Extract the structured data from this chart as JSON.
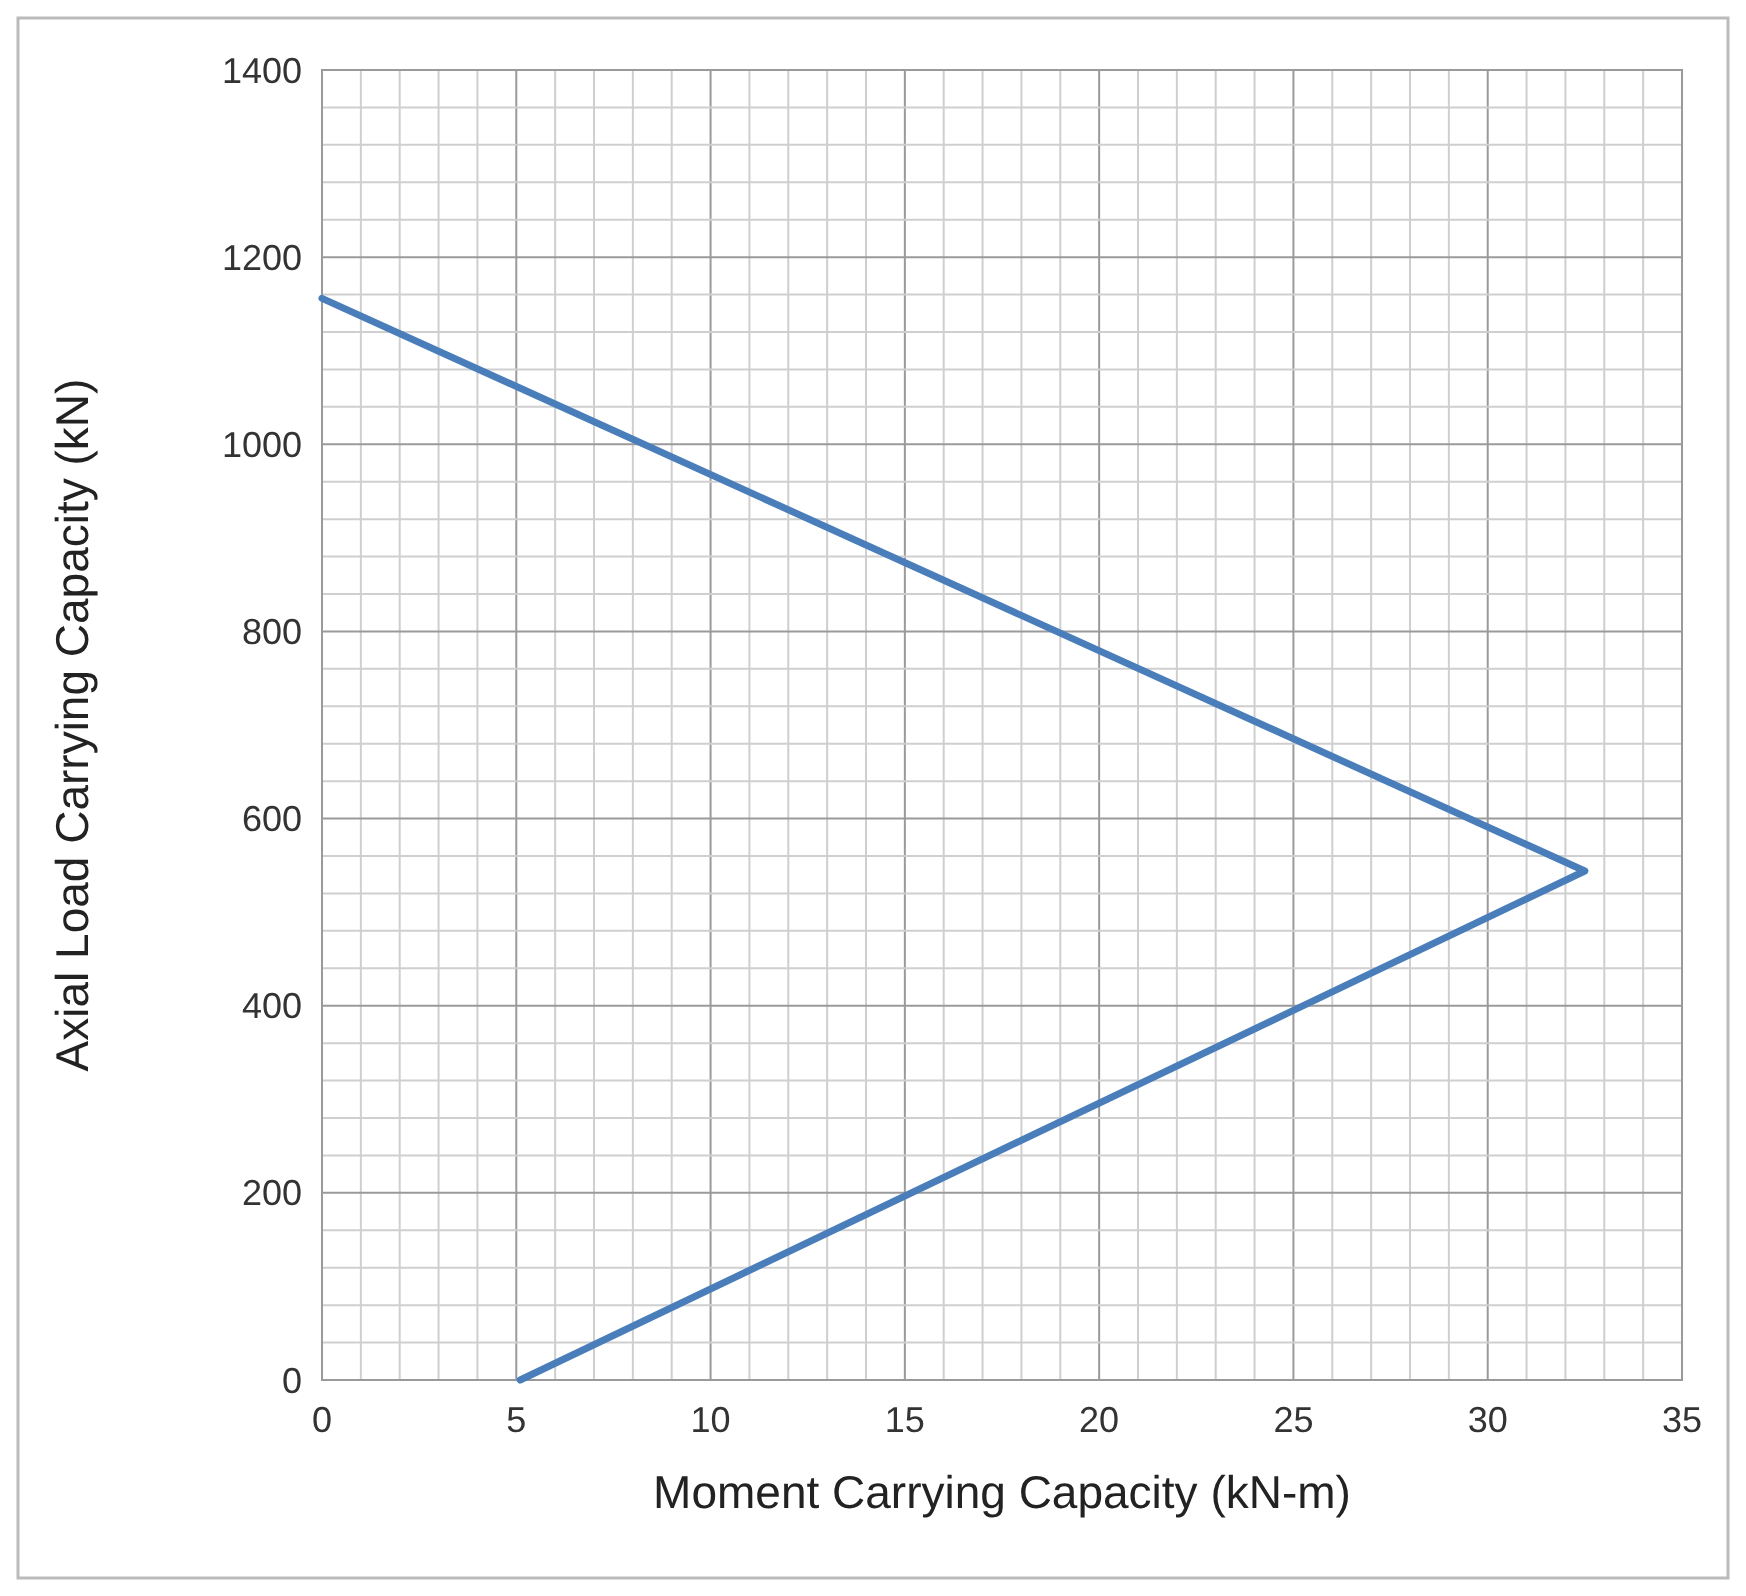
{
  "chart_data": {
    "type": "line",
    "xlabel": "Moment Carrying Capacity (kN-m)",
    "ylabel": "Axial Load Carrying Capacity (kN)",
    "x": [
      0,
      32.5,
      5.1
    ],
    "series": [
      {
        "color": "#4a7ebb",
        "values": [
          1156,
          544,
          0
        ]
      }
    ],
    "xlim": [
      0,
      35
    ],
    "ylim": [
      0,
      1400
    ],
    "xticks": [
      0,
      {
        "value": 1,
        "label": null
      },
      {
        "value": 2,
        "label": null
      },
      {
        "value": 3,
        "label": null
      },
      {
        "value": 4,
        "label": null
      },
      5,
      {
        "value": 6,
        "label": null
      },
      {
        "value": 7,
        "label": null
      },
      {
        "value": 8,
        "label": null
      },
      {
        "value": 9,
        "label": null
      },
      10,
      {
        "value": 11,
        "label": null
      },
      {
        "value": 12,
        "label": null
      },
      {
        "value": 13,
        "label": null
      },
      {
        "value": 14,
        "label": null
      },
      15,
      {
        "value": 16,
        "label": null
      },
      {
        "value": 17,
        "label": null
      },
      {
        "value": 18,
        "label": null
      },
      {
        "value": 19,
        "label": null
      },
      20,
      {
        "value": 21,
        "label": null
      },
      {
        "value": 22,
        "label": null
      },
      {
        "value": 23,
        "label": null
      },
      {
        "value": 24,
        "label": null
      },
      25,
      {
        "value": 26,
        "label": null
      },
      {
        "value": 27,
        "label": null
      },
      {
        "value": 28,
        "label": null
      },
      {
        "value": 29,
        "label": null
      },
      30,
      {
        "value": 31,
        "label": null
      },
      {
        "value": 32,
        "label": null
      },
      {
        "value": 33,
        "label": null
      },
      {
        "value": 34,
        "label": null
      },
      35
    ],
    "yticks": [
      0,
      {
        "value": 40,
        "label": null
      },
      {
        "value": 80,
        "label": null
      },
      {
        "value": 120,
        "label": null
      },
      {
        "value": 160,
        "label": null
      },
      200,
      {
        "value": 240,
        "label": null
      },
      {
        "value": 280,
        "label": null
      },
      {
        "value": 320,
        "label": null
      },
      {
        "value": 360,
        "label": null
      },
      400,
      {
        "value": 440,
        "label": null
      },
      {
        "value": 480,
        "label": null
      },
      {
        "value": 520,
        "label": null
      },
      {
        "value": 560,
        "label": null
      },
      600,
      {
        "value": 640,
        "label": null
      },
      {
        "value": 680,
        "label": null
      },
      {
        "value": 720,
        "label": null
      },
      {
        "value": 760,
        "label": null
      },
      800,
      {
        "value": 840,
        "label": null
      },
      {
        "value": 880,
        "label": null
      },
      {
        "value": 920,
        "label": null
      },
      {
        "value": 960,
        "label": null
      },
      1000,
      {
        "value": 1040,
        "label": null
      },
      {
        "value": 1080,
        "label": null
      },
      {
        "value": 1120,
        "label": null
      },
      {
        "value": 1160,
        "label": null
      },
      1200,
      {
        "value": 1240,
        "label": null
      },
      {
        "value": 1280,
        "label": null
      },
      {
        "value": 1320,
        "label": null
      },
      {
        "value": 1360,
        "label": null
      },
      1400
    ],
    "grid": true,
    "marker": "none",
    "line_style": "solid"
  }
}
